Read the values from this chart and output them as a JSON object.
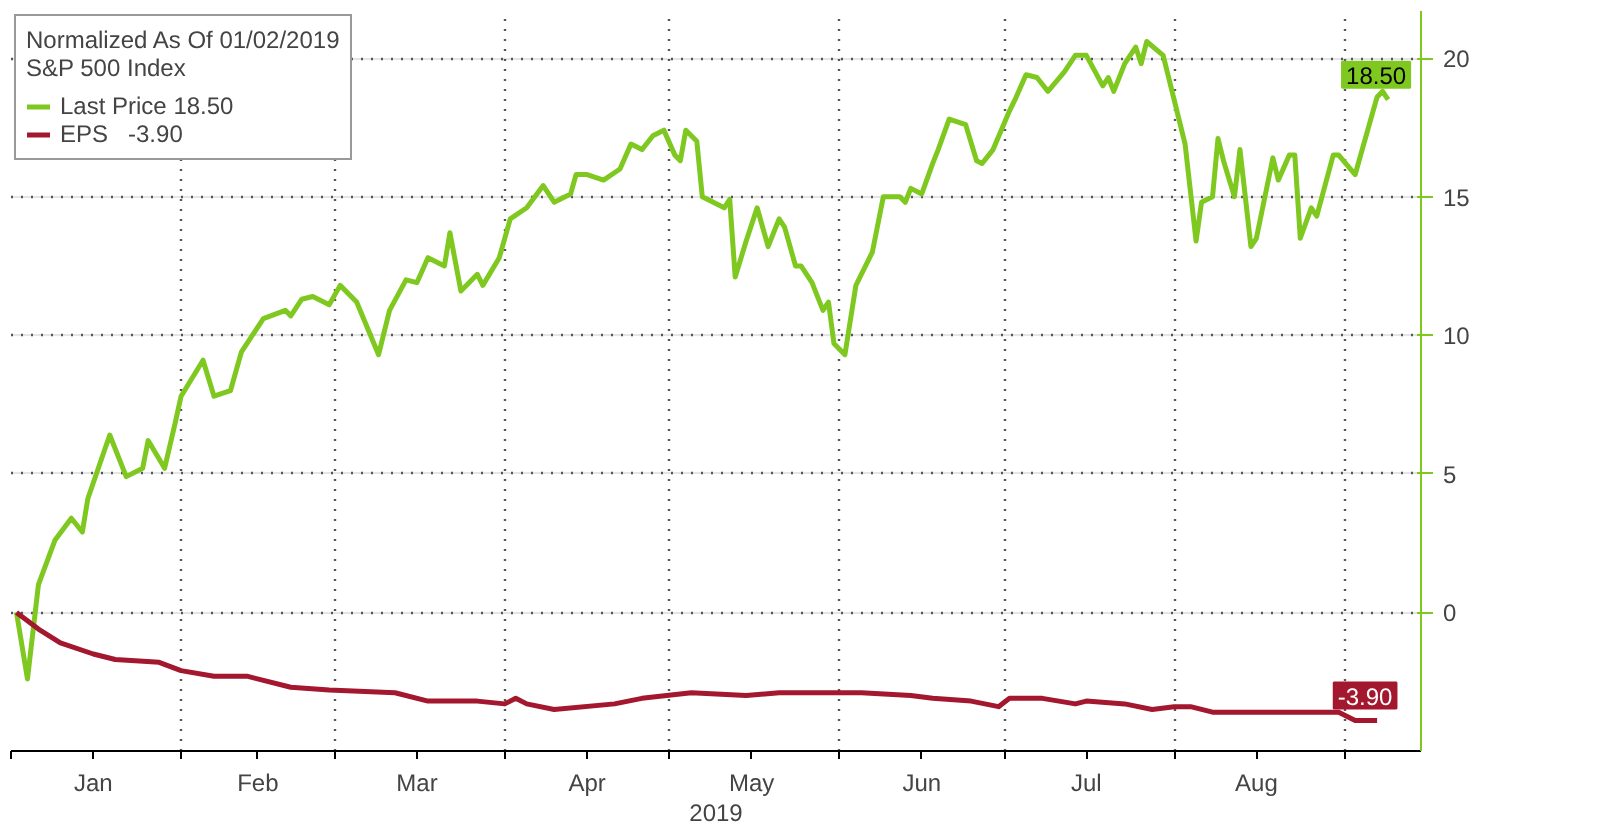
{
  "chart_data": {
    "type": "line",
    "title": "Normalized As Of 01/02/2019",
    "subtitle": "S&P 500 Index",
    "xlabel": "2019",
    "xlim": [
      "2019-01-01",
      "2019-09-15"
    ],
    "xticks": [
      {
        "value": "2019-01-01",
        "label": null
      },
      {
        "value": "2019-01-16",
        "label": "Jan"
      },
      {
        "value": "2019-02-01",
        "label": null
      },
      {
        "value": "2019-02-15",
        "label": "Feb"
      },
      {
        "value": "2019-03-01",
        "label": null
      },
      {
        "value": "2019-03-16",
        "label": "Mar"
      },
      {
        "value": "2019-04-01",
        "label": null
      },
      {
        "value": "2019-04-16",
        "label": "Apr"
      },
      {
        "value": "2019-05-01",
        "label": null
      },
      {
        "value": "2019-05-16",
        "label": "May"
      },
      {
        "value": "2019-06-01",
        "label": null
      },
      {
        "value": "2019-06-16",
        "label": "Jun"
      },
      {
        "value": "2019-07-01",
        "label": null
      },
      {
        "value": "2019-07-16",
        "label": "Jul"
      },
      {
        "value": "2019-08-01",
        "label": null
      },
      {
        "value": "2019-08-16",
        "label": "Aug"
      },
      {
        "value": "2019-09-01",
        "label": null
      }
    ],
    "ylim": [
      -5,
      21.7
    ],
    "yticks": [
      0,
      5,
      10,
      15,
      20
    ],
    "grid": true,
    "legend": "top left",
    "marker": "none",
    "line_style": "solid",
    "series": [
      {
        "name": "Last Price 18.50",
        "color": "#7ec820",
        "x": [
          "2019-01-02",
          "2019-01-04",
          "2019-01-06",
          "2019-01-09",
          "2019-01-12",
          "2019-01-14",
          "2019-01-15",
          "2019-01-19",
          "2019-01-22",
          "2019-01-25",
          "2019-01-26",
          "2019-01-29",
          "2019-01-31",
          "2019-02-01",
          "2019-02-05",
          "2019-02-07",
          "2019-02-10",
          "2019-02-12",
          "2019-02-13",
          "2019-02-16",
          "2019-02-20",
          "2019-02-21",
          "2019-02-23",
          "2019-02-25",
          "2019-02-28",
          "2019-03-02",
          "2019-03-05",
          "2019-03-09",
          "2019-03-11",
          "2019-03-14",
          "2019-03-16",
          "2019-03-18",
          "2019-03-21",
          "2019-03-22",
          "2019-03-24",
          "2019-03-27",
          "2019-03-28",
          "2019-03-31",
          "2019-04-02",
          "2019-04-05",
          "2019-04-08",
          "2019-04-10",
          "2019-04-13",
          "2019-04-14",
          "2019-04-16",
          "2019-04-19",
          "2019-04-22",
          "2019-04-24",
          "2019-04-26",
          "2019-04-28",
          "2019-04-30",
          "2019-05-02",
          "2019-05-03",
          "2019-05-04",
          "2019-05-06",
          "2019-05-07",
          "2019-05-11",
          "2019-05-12",
          "2019-05-13",
          "2019-05-15",
          "2019-05-17",
          "2019-05-19",
          "2019-05-21",
          "2019-05-22",
          "2019-05-24",
          "2019-05-25",
          "2019-05-27",
          "2019-05-29",
          "2019-05-30",
          "2019-05-31",
          "2019-06-02",
          "2019-06-04",
          "2019-06-07",
          "2019-06-09",
          "2019-06-12",
          "2019-06-13",
          "2019-06-14",
          "2019-06-16",
          "2019-06-18",
          "2019-06-19",
          "2019-06-21",
          "2019-06-24",
          "2019-06-26",
          "2019-06-27",
          "2019-06-29",
          "2019-07-02",
          "2019-07-03",
          "2019-07-05",
          "2019-07-07",
          "2019-07-09",
          "2019-07-12",
          "2019-07-14",
          "2019-07-16",
          "2019-07-19",
          "2019-07-20",
          "2019-07-21",
          "2019-07-23",
          "2019-07-25",
          "2019-07-26",
          "2019-07-27",
          "2019-07-30",
          "2019-08-01",
          "2019-08-03",
          "2019-08-05",
          "2019-08-06",
          "2019-08-08",
          "2019-08-09",
          "2019-08-10",
          "2019-08-12",
          "2019-08-13",
          "2019-08-15",
          "2019-08-16",
          "2019-08-19",
          "2019-08-20",
          "2019-08-22",
          "2019-08-23",
          "2019-08-24",
          "2019-08-26",
          "2019-08-27",
          "2019-08-30",
          "2019-08-31",
          "2019-09-03",
          "2019-09-07",
          "2019-09-08",
          "2019-09-09"
        ],
        "values": [
          0,
          -2.4,
          1.0,
          2.6,
          3.4,
          2.9,
          4.1,
          6.4,
          4.9,
          5.2,
          6.2,
          5.2,
          6.9,
          7.8,
          9.1,
          7.8,
          8.0,
          9.4,
          9.7,
          10.6,
          10.9,
          10.7,
          11.3,
          11.4,
          11.1,
          11.8,
          11.2,
          9.3,
          10.9,
          12.0,
          11.9,
          12.8,
          12.5,
          13.7,
          11.6,
          12.2,
          11.8,
          12.8,
          14.2,
          14.6,
          15.4,
          14.8,
          15.1,
          15.8,
          15.8,
          15.6,
          16.0,
          16.9,
          16.7,
          17.2,
          17.4,
          16.5,
          16.3,
          17.4,
          17.0,
          15.0,
          14.6,
          14.9,
          12.1,
          13.4,
          14.6,
          13.2,
          14.2,
          13.9,
          12.5,
          12.5,
          11.9,
          10.9,
          11.2,
          9.7,
          9.3,
          11.8,
          13.0,
          15.0,
          15.0,
          14.8,
          15.3,
          15.1,
          16.2,
          16.7,
          17.8,
          17.6,
          16.3,
          16.2,
          16.7,
          18.1,
          18.5,
          19.4,
          19.3,
          18.8,
          19.5,
          20.1,
          20.1,
          19.0,
          19.3,
          18.8,
          19.8,
          20.4,
          19.8,
          20.6,
          20.1,
          18.5,
          16.9,
          13.4,
          14.8,
          15.0,
          17.1,
          16.3,
          15.0,
          16.7,
          13.2,
          13.5,
          16.4,
          15.6,
          16.5,
          16.5,
          13.5,
          14.6,
          14.3,
          16.5,
          16.5,
          15.8,
          18.6,
          18.8,
          18.5
        ],
        "value_labels": [
          null,
          null,
          null,
          null,
          null,
          null,
          null,
          null,
          null,
          null,
          null,
          null,
          null,
          null,
          null,
          null,
          null,
          null,
          null,
          null,
          null,
          null,
          null,
          null,
          null,
          null,
          null,
          null,
          null,
          null,
          null,
          null,
          null,
          null,
          null,
          null,
          null,
          null,
          null,
          null,
          null,
          null,
          null,
          null,
          null,
          null,
          null,
          null,
          null,
          null,
          null,
          null,
          null,
          null,
          null,
          null,
          null,
          null,
          null,
          null,
          null,
          null,
          null,
          null,
          null,
          null,
          null,
          null,
          null,
          null,
          null,
          null,
          null,
          null,
          null,
          null,
          null,
          null,
          null,
          null,
          null,
          null,
          null,
          null,
          null,
          null,
          null,
          null,
          null,
          null,
          null,
          null,
          null,
          null,
          null,
          null,
          null,
          null,
          null,
          null,
          null,
          null,
          null,
          null,
          null,
          null,
          null,
          null,
          null,
          null,
          null,
          null,
          null,
          null,
          null,
          null,
          null,
          null,
          null,
          null,
          null,
          null,
          null,
          null,
          "18.50"
        ]
      },
      {
        "name": "EPS   -3.90",
        "color": "#a3172f",
        "x": [
          "2019-01-02",
          "2019-01-06",
          "2019-01-10",
          "2019-01-16",
          "2019-01-20",
          "2019-01-28",
          "2019-02-01",
          "2019-02-07",
          "2019-02-13",
          "2019-02-21",
          "2019-02-28",
          "2019-03-12",
          "2019-03-18",
          "2019-03-27",
          "2019-04-01",
          "2019-04-03",
          "2019-04-05",
          "2019-04-10",
          "2019-04-21",
          "2019-04-26",
          "2019-05-05",
          "2019-05-15",
          "2019-05-21",
          "2019-06-05",
          "2019-06-14",
          "2019-06-18",
          "2019-06-25",
          "2019-06-30",
          "2019-07-02",
          "2019-07-08",
          "2019-07-14",
          "2019-07-16",
          "2019-07-23",
          "2019-07-28",
          "2019-08-01",
          "2019-08-04",
          "2019-08-08",
          "2019-08-15",
          "2019-08-22",
          "2019-08-26",
          "2019-08-31",
          "2019-09-03",
          "2019-09-07"
        ],
        "values": [
          0,
          -0.6,
          -1.1,
          -1.5,
          -1.7,
          -1.8,
          -2.1,
          -2.3,
          -2.3,
          -2.7,
          -2.8,
          -2.9,
          -3.2,
          -3.2,
          -3.3,
          -3.1,
          -3.3,
          -3.5,
          -3.3,
          -3.1,
          -2.9,
          -3.0,
          -2.9,
          -2.9,
          -3.0,
          -3.1,
          -3.2,
          -3.4,
          -3.1,
          -3.1,
          -3.3,
          -3.2,
          -3.3,
          -3.5,
          -3.4,
          -3.4,
          -3.6,
          -3.6,
          -3.6,
          -3.6,
          -3.6,
          -3.9,
          -3.9
        ],
        "value_labels": [
          null,
          null,
          null,
          null,
          null,
          null,
          null,
          null,
          null,
          null,
          null,
          null,
          null,
          null,
          null,
          null,
          null,
          null,
          null,
          null,
          null,
          null,
          null,
          null,
          null,
          null,
          null,
          null,
          null,
          null,
          null,
          null,
          null,
          null,
          null,
          null,
          null,
          null,
          null,
          null,
          null,
          null,
          "-3.90"
        ]
      }
    ]
  }
}
